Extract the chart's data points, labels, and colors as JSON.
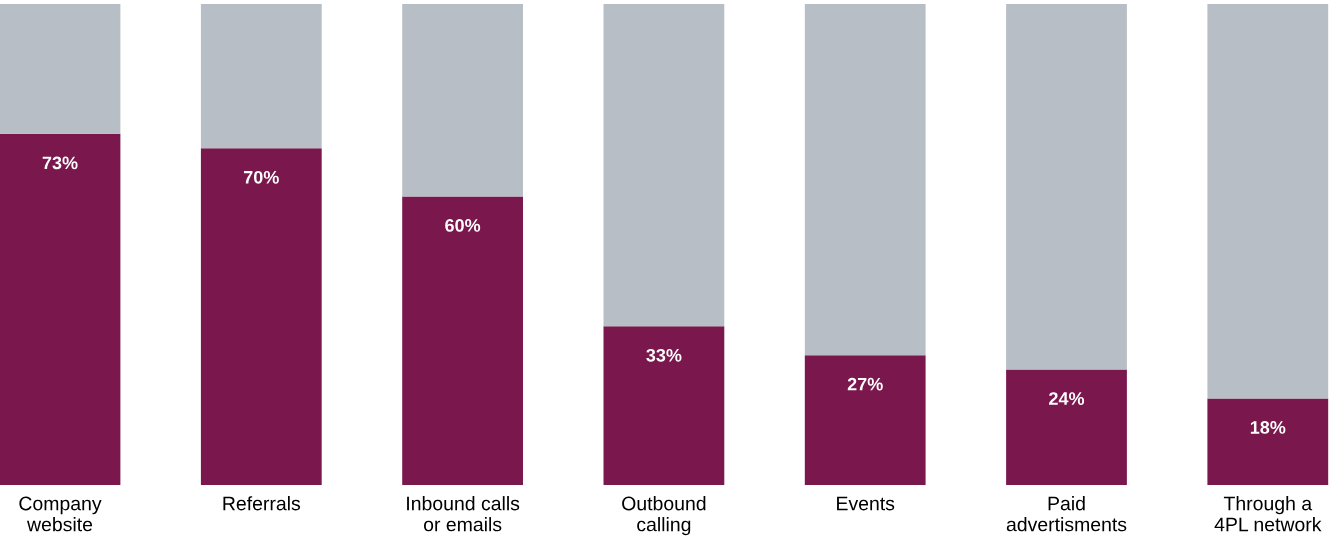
{
  "chart_data": {
    "type": "bar",
    "stacked": true,
    "categories": [
      "Company\nwebsite",
      "Referrals",
      "Inbound calls\nor emails",
      "Outbound\ncalling",
      "Events",
      "Paid\nadvertisments",
      "Through a\n4PL network"
    ],
    "series": [
      {
        "color": "#7a174c",
        "values": [
          73,
          70,
          60,
          33,
          27,
          24,
          18
        ],
        "value_labels": [
          "73%",
          "70%",
          "60%",
          "33%",
          "27%",
          "24%",
          "18%"
        ]
      },
      {
        "color": "#b8bec5",
        "values": [
          27,
          30,
          40,
          67,
          73,
          76,
          82
        ]
      }
    ],
    "ylim": [
      0,
      100
    ],
    "tick_labels": "x",
    "grid": false,
    "legend": false
  }
}
